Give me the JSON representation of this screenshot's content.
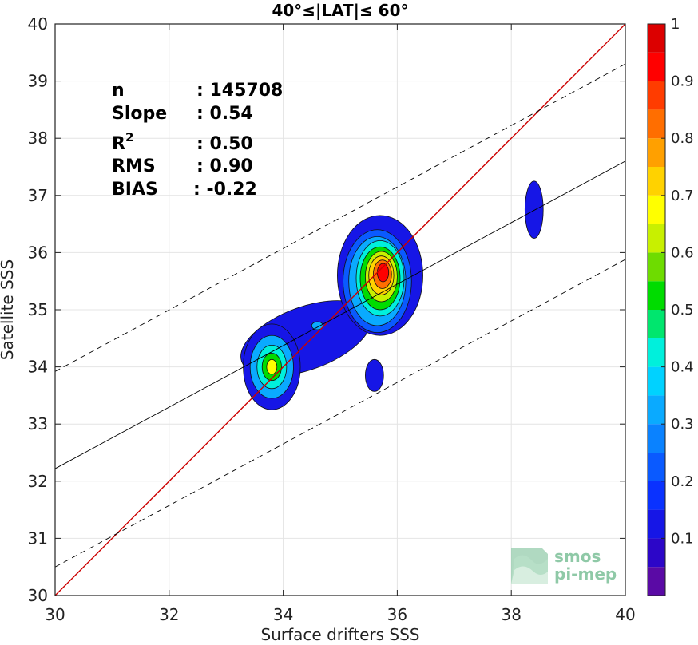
{
  "chart_data": {
    "type": "heatmap",
    "title": "40°≤|LAT|≤ 60°",
    "xlabel": "Surface drifters SSS",
    "ylabel": "Satellite SSS",
    "xlim": [
      30,
      40
    ],
    "ylim": [
      30,
      40
    ],
    "x_ticks": [
      "30",
      "32",
      "34",
      "36",
      "38",
      "40"
    ],
    "y_ticks": [
      "30",
      "31",
      "32",
      "33",
      "34",
      "35",
      "36",
      "37",
      "38",
      "39",
      "40"
    ],
    "grid": true,
    "stats": [
      {
        "label": "n",
        "value": ": 145708"
      },
      {
        "label": "Slope",
        "value": ": 0.54"
      },
      {
        "label": "R",
        "sup": "2",
        "value": ": 0.50"
      },
      {
        "label": "RMS",
        "value": ": 0.90"
      },
      {
        "label": "BIAS",
        "value": ": -0.22"
      }
    ],
    "identity_line": {
      "color": "#cc0000",
      "points": [
        [
          30,
          30
        ],
        [
          40,
          40
        ]
      ]
    },
    "regression_line": {
      "points": [
        [
          30,
          32.22
        ],
        [
          40,
          37.6
        ]
      ]
    },
    "rms_bounds": [
      {
        "points": [
          [
            30,
            33.92
          ],
          [
            40,
            39.3
          ]
        ]
      },
      {
        "points": [
          [
            30,
            30.5
          ],
          [
            40,
            35.88
          ]
        ]
      }
    ],
    "density_blobs": [
      {
        "center": [
          34.4,
          34.5
        ],
        "rx": 1.2,
        "ry": 0.55,
        "rotate": -20,
        "level": 0.1
      },
      {
        "center": [
          33.8,
          34.0
        ],
        "rx": 0.5,
        "ry": 0.75,
        "rotate": 0,
        "level": 0.1
      },
      {
        "center": [
          35.7,
          35.6
        ],
        "rx": 0.75,
        "ry": 1.05,
        "rotate": 0,
        "level": 0.1
      },
      {
        "center": [
          35.6,
          33.85
        ],
        "rx": 0.16,
        "ry": 0.28,
        "rotate": 0,
        "level": 0.1
      },
      {
        "center": [
          38.4,
          36.75
        ],
        "rx": 0.16,
        "ry": 0.5,
        "rotate": 0,
        "level": 0.1
      },
      {
        "center": [
          33.8,
          34.0
        ],
        "rx": 0.38,
        "ry": 0.55,
        "rotate": 0,
        "level": 0.3
      },
      {
        "center": [
          33.8,
          34.0
        ],
        "rx": 0.26,
        "ry": 0.38,
        "rotate": 0,
        "level": 0.4
      },
      {
        "center": [
          33.8,
          34.0
        ],
        "rx": 0.17,
        "ry": 0.24,
        "rotate": 0,
        "level": 0.5
      },
      {
        "center": [
          33.8,
          34.0
        ],
        "rx": 0.09,
        "ry": 0.13,
        "rotate": 0,
        "level": 0.65
      },
      {
        "center": [
          34.6,
          34.72
        ],
        "rx": 0.1,
        "ry": 0.07,
        "rotate": 0,
        "level": 0.3
      },
      {
        "center": [
          35.65,
          35.5
        ],
        "rx": 0.6,
        "ry": 0.9,
        "rotate": 0,
        "level": 0.2
      },
      {
        "center": [
          35.65,
          35.5
        ],
        "rx": 0.5,
        "ry": 0.78,
        "rotate": 0,
        "level": 0.3
      },
      {
        "center": [
          35.7,
          35.55
        ],
        "rx": 0.42,
        "ry": 0.66,
        "rotate": 0,
        "level": 0.4
      },
      {
        "center": [
          35.7,
          35.55
        ],
        "rx": 0.35,
        "ry": 0.55,
        "rotate": 0,
        "level": 0.5
      },
      {
        "center": [
          35.72,
          35.58
        ],
        "rx": 0.28,
        "ry": 0.44,
        "rotate": 0,
        "level": 0.6
      },
      {
        "center": [
          35.72,
          35.6
        ],
        "rx": 0.22,
        "ry": 0.34,
        "rotate": 0,
        "level": 0.7
      },
      {
        "center": [
          35.74,
          35.62
        ],
        "rx": 0.16,
        "ry": 0.25,
        "rotate": 0,
        "level": 0.8
      },
      {
        "center": [
          35.75,
          35.65
        ],
        "rx": 0.1,
        "ry": 0.16,
        "rotate": 0,
        "level": 0.9
      }
    ],
    "colorbar": {
      "ticks": [
        "1",
        "0.9",
        "0.8",
        "0.7",
        "0.6",
        "0.5",
        "0.4",
        "0.3",
        "0.2",
        "0.1"
      ],
      "tick_values": [
        1,
        0.9,
        0.8,
        0.7,
        0.6,
        0.5,
        0.4,
        0.3,
        0.2,
        0.1
      ],
      "levels": [
        0,
        0.05,
        0.1,
        0.15,
        0.2,
        0.25,
        0.3,
        0.35,
        0.4,
        0.45,
        0.5,
        0.55,
        0.6,
        0.65,
        0.7,
        0.75,
        0.8,
        0.85,
        0.9,
        0.95
      ],
      "colors": [
        "#ffffff",
        "#5a0aa5",
        "#2c06c8",
        "#1616e6",
        "#0a32ff",
        "#0a5aff",
        "#0a82ff",
        "#0aaaff",
        "#00d2ff",
        "#00f0dc",
        "#00e66e",
        "#00dc00",
        "#6edc00",
        "#c8f000",
        "#ffff00",
        "#ffd200",
        "#ffa000",
        "#ff6e00",
        "#ff3c00",
        "#ff0000",
        "#dc0000",
        "#960000"
      ]
    }
  },
  "logo": {
    "line1": "smos",
    "line2": "pi-mep"
  }
}
